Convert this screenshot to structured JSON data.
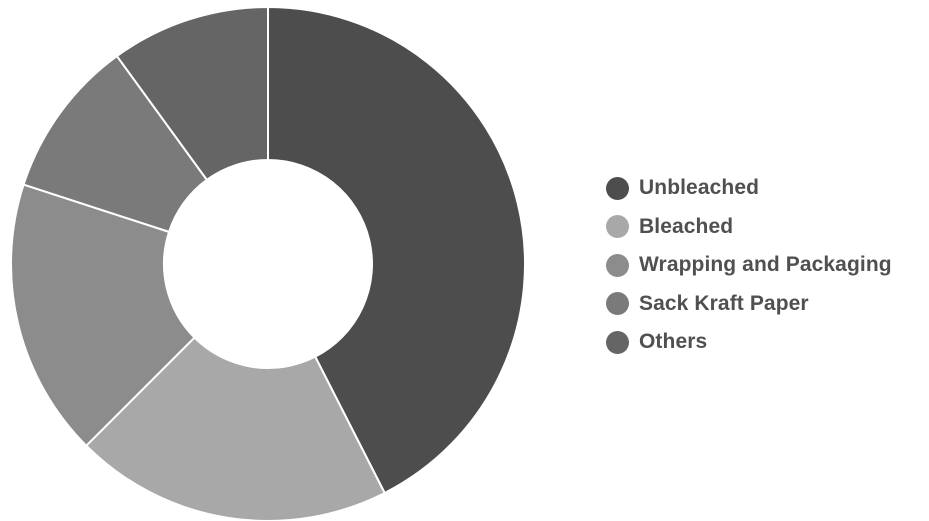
{
  "chart_data": {
    "type": "pie",
    "variant": "donut",
    "categories": [
      "Unbleached",
      "Bleached",
      "Wrapping and Packaging",
      "Sack Kraft Paper",
      "Others"
    ],
    "values": [
      42.5,
      20,
      17.5,
      10,
      10
    ],
    "unit": "%",
    "colors": [
      "#4d4d4d",
      "#a8a8a8",
      "#8c8c8c",
      "#7a7a7a",
      "#656565"
    ],
    "legend_position": "right",
    "start_angle_deg": 0,
    "direction": "clockwise",
    "title": "",
    "data_labels": false
  }
}
